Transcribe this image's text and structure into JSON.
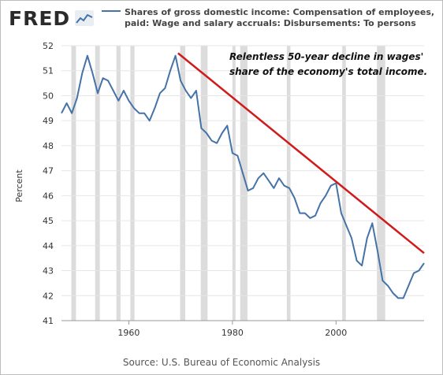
{
  "header": {
    "logo_text": "FRED",
    "logo_icon": "line-chart-icon",
    "title": "Shares of gross domestic income: Compensation of employees, paid: Wage and salary accruals: Disbursements: To persons"
  },
  "annotation": {
    "line1": "Relentless 50-year decline in wages'",
    "line2": "share of the economy's total income."
  },
  "source": "Source: U.S. Bureau of Economic Analysis",
  "colors": {
    "series": "#4572a7",
    "trend": "#d11a1a",
    "recession": "#dcdcdc",
    "grid": "#e6e6e6"
  },
  "chart_data": {
    "type": "line",
    "ylabel": "Percent",
    "xlim": [
      1947,
      2017
    ],
    "ylim": [
      41,
      52
    ],
    "yticks": [
      41,
      42,
      43,
      44,
      45,
      46,
      47,
      48,
      49,
      50,
      51,
      52
    ],
    "xticks": [
      1960,
      1980,
      2000
    ],
    "recessions": [
      [
        1948.9,
        1949.8
      ],
      [
        1953.5,
        1954.4
      ],
      [
        1957.6,
        1958.4
      ],
      [
        1960.3,
        1961.1
      ],
      [
        1969.9,
        1970.9
      ],
      [
        1973.9,
        1975.2
      ],
      [
        1980.0,
        1980.6
      ],
      [
        1981.5,
        1982.9
      ],
      [
        1990.5,
        1991.2
      ],
      [
        2001.2,
        2001.9
      ],
      [
        2007.9,
        2009.5
      ]
    ],
    "series": [
      {
        "x": [
          1947,
          1948,
          1949,
          1950,
          1951,
          1952,
          1953,
          1954,
          1955,
          1956,
          1957,
          1958,
          1959,
          1960,
          1961,
          1962,
          1963,
          1964,
          1965,
          1966,
          1967,
          1968,
          1969,
          1970,
          1971,
          1972,
          1973,
          1974,
          1975,
          1976,
          1977,
          1978,
          1979,
          1980,
          1981,
          1982,
          1983,
          1984,
          1985,
          1986,
          1987,
          1988,
          1989,
          1990,
          1991,
          1992,
          1993,
          1994,
          1995,
          1996,
          1997,
          1998,
          1999,
          2000,
          2001,
          2002,
          2003,
          2004,
          2005,
          2006,
          2007,
          2008,
          2009,
          2010,
          2011,
          2012,
          2013,
          2014,
          2015,
          2016,
          2017
        ],
        "y": [
          49.3,
          49.7,
          49.3,
          49.9,
          50.9,
          51.6,
          50.9,
          50.1,
          50.7,
          50.6,
          50.2,
          49.8,
          50.2,
          49.8,
          49.5,
          49.3,
          49.3,
          49.0,
          49.5,
          50.1,
          50.3,
          51.0,
          51.6,
          50.6,
          50.2,
          49.9,
          50.2,
          48.7,
          48.5,
          48.2,
          48.1,
          48.5,
          48.8,
          47.7,
          47.6,
          46.9,
          46.2,
          46.3,
          46.7,
          46.9,
          46.6,
          46.3,
          46.7,
          46.4,
          46.3,
          45.9,
          45.3,
          45.3,
          45.1,
          45.2,
          45.7,
          46.0,
          46.4,
          46.5,
          45.3,
          44.8,
          44.3,
          43.4,
          43.2,
          44.3,
          44.9,
          43.8,
          42.6,
          42.4,
          42.1,
          41.9,
          41.9,
          42.4,
          42.9,
          43.0,
          43.3
        ]
      }
    ],
    "trendline": {
      "x": [
        1969.5,
        2017
      ],
      "y": [
        51.7,
        43.7
      ]
    }
  }
}
